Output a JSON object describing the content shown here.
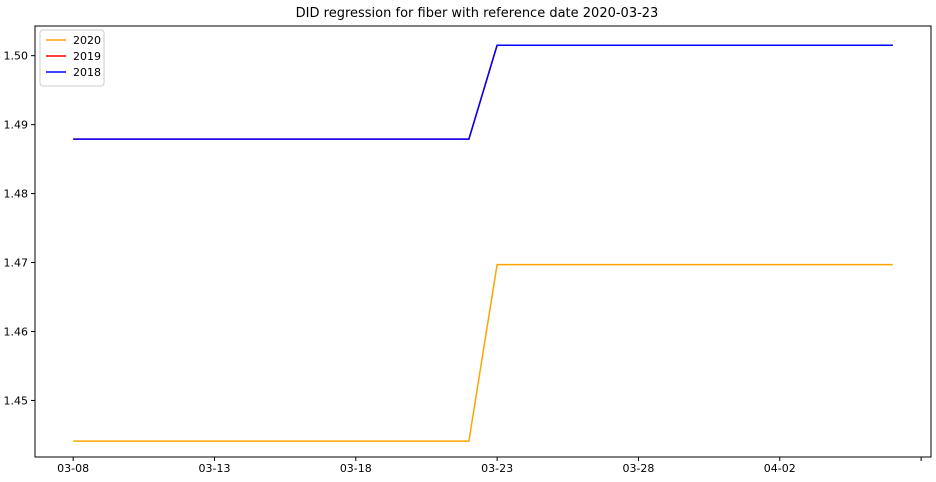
{
  "chart_data": {
    "type": "line",
    "title": "DID regression for fiber with reference date 2020-03-23",
    "xlabel": "",
    "ylabel": "",
    "x_tick_labels": [
      "03-08",
      "03-13",
      "03-18",
      "03-23",
      "03-28",
      "04-02",
      ""
    ],
    "x_ticks_day_index": [
      0,
      5,
      10,
      15,
      20,
      25,
      30
    ],
    "xlim_day_index": [
      -1.35,
      30.35
    ],
    "y_ticks": [
      1.45,
      1.46,
      1.47,
      1.48,
      1.49,
      1.5
    ],
    "y_tick_labels": [
      "1.45",
      "1.46",
      "1.47",
      "1.48",
      "1.49",
      "1.50"
    ],
    "ylim": [
      1.4418,
      1.5043
    ],
    "grid": false,
    "legend_position": "top-left",
    "series": [
      {
        "name": "2020",
        "color": "#ffa500",
        "x_day_index": [
          0,
          14,
          15,
          29
        ],
        "values": [
          1.4441,
          1.4441,
          1.4697,
          1.4697
        ]
      },
      {
        "name": "2019",
        "color": "#ff0000",
        "x_day_index": [
          0,
          14,
          15,
          29
        ],
        "values": [
          1.4879,
          1.4879,
          1.5015,
          1.5015
        ]
      },
      {
        "name": "2018",
        "color": "#0000ff",
        "x_day_index": [
          0,
          14,
          15,
          29
        ],
        "values": [
          1.4879,
          1.4879,
          1.5015,
          1.5015
        ]
      }
    ]
  }
}
